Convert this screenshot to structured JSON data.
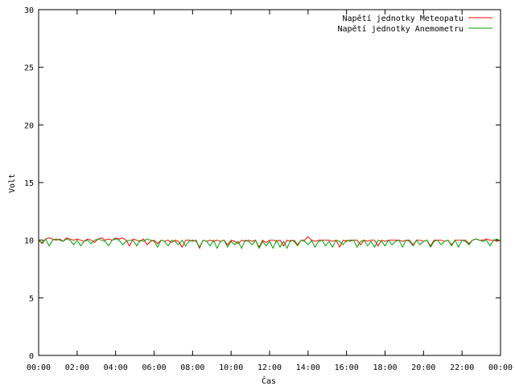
{
  "chart_data": {
    "type": "line",
    "title": "",
    "xlabel": "Čas",
    "ylabel": "Volt",
    "ylim": [
      0,
      30
    ],
    "yticks": [
      0,
      5,
      10,
      15,
      20,
      25,
      30
    ],
    "xlim": [
      "00:00",
      "24:00"
    ],
    "xticks": [
      "00:00",
      "02:00",
      "04:00",
      "06:00",
      "08:00",
      "10:00",
      "12:00",
      "14:00",
      "16:00",
      "18:00",
      "20:00",
      "22:00",
      "00:00"
    ],
    "grid": false,
    "legend_position": "top-right",
    "series": [
      {
        "name": "Napětí jednotky Meteopatu",
        "color": "#ff0000",
        "values": [
          10.0,
          9.7,
          10.1,
          10.2,
          10.1,
          10.0,
          10.1,
          9.9,
          10.2,
          10.1,
          10.0,
          10.1,
          10.0,
          9.9,
          10.1,
          10.0,
          9.8,
          10.1,
          10.2,
          10.0,
          10.1,
          10.0,
          10.2,
          10.1,
          10.2,
          10.0,
          9.5,
          10.1,
          10.0,
          9.9,
          10.1,
          9.6,
          9.9,
          10.0,
          9.7,
          10.0,
          9.9,
          10.0,
          9.8,
          10.0,
          9.9,
          9.4,
          10.0,
          10.0,
          9.9,
          10.0,
          9.3,
          10.0,
          9.9,
          10.0,
          9.9,
          10.0,
          9.9,
          10.0,
          9.6,
          10.0,
          9.9,
          9.7,
          10.0,
          9.9,
          10.0,
          9.9,
          10.0,
          9.4,
          10.0,
          9.8,
          10.0,
          10.0,
          9.9,
          10.0,
          9.5,
          10.0,
          9.9,
          10.0,
          9.6,
          10.0,
          10.0,
          10.3,
          10.0,
          9.9,
          10.0,
          10.0,
          10.0,
          10.0,
          9.9,
          10.0,
          9.4,
          10.0,
          9.9,
          10.0,
          10.0,
          10.0,
          9.6,
          10.0,
          9.9,
          10.0,
          10.0,
          9.5,
          10.0,
          9.9,
          10.0,
          10.0,
          10.0,
          10.0,
          9.9,
          10.0,
          10.0,
          9.6,
          10.0,
          10.0,
          9.9,
          10.0,
          9.5,
          10.0,
          10.0,
          10.0,
          9.9,
          10.0,
          9.6,
          10.0,
          10.0,
          10.0,
          10.0,
          9.7,
          10.0,
          10.1,
          10.0,
          10.0,
          10.1,
          10.0,
          10.0,
          9.9,
          10.0
        ]
      },
      {
        "name": "Napětí jednotky Anemometru",
        "color": "#00a000",
        "values": [
          9.9,
          9.8,
          10.1,
          9.5,
          10.0,
          10.1,
          10.0,
          9.9,
          10.1,
          10.0,
          9.6,
          10.0,
          9.5,
          9.9,
          10.0,
          9.7,
          10.0,
          10.1,
          10.0,
          9.9,
          9.5,
          10.0,
          10.1,
          10.0,
          9.6,
          9.9,
          10.0,
          10.0,
          9.5,
          10.0,
          9.9,
          10.1,
          10.0,
          9.9,
          9.4,
          10.0,
          9.9,
          9.5,
          10.0,
          9.9,
          9.6,
          10.0,
          9.5,
          9.9,
          10.0,
          9.9,
          9.4,
          10.0,
          9.9,
          9.5,
          10.0,
          9.3,
          9.9,
          10.0,
          9.4,
          9.9,
          9.6,
          9.9,
          9.3,
          10.0,
          9.9,
          9.6,
          10.0,
          9.3,
          9.9,
          9.5,
          9.9,
          9.3,
          10.0,
          9.4,
          9.9,
          9.3,
          10.0,
          9.9,
          9.5,
          10.0,
          9.9,
          9.6,
          10.0,
          9.4,
          9.9,
          10.0,
          9.5,
          9.9,
          9.4,
          10.0,
          9.9,
          9.6,
          10.0,
          9.9,
          10.0,
          9.4,
          9.9,
          10.0,
          9.5,
          9.9,
          9.4,
          10.0,
          9.9,
          9.5,
          10.0,
          9.6,
          9.9,
          10.0,
          9.4,
          10.0,
          9.9,
          9.5,
          10.0,
          9.6,
          9.9,
          10.0,
          9.4,
          9.9,
          10.0,
          9.6,
          9.9,
          10.0,
          9.5,
          10.0,
          9.4,
          10.0,
          9.9,
          9.6,
          10.0,
          10.1,
          10.0,
          9.9,
          10.0,
          9.5,
          10.0,
          10.1,
          9.9
        ]
      }
    ]
  }
}
